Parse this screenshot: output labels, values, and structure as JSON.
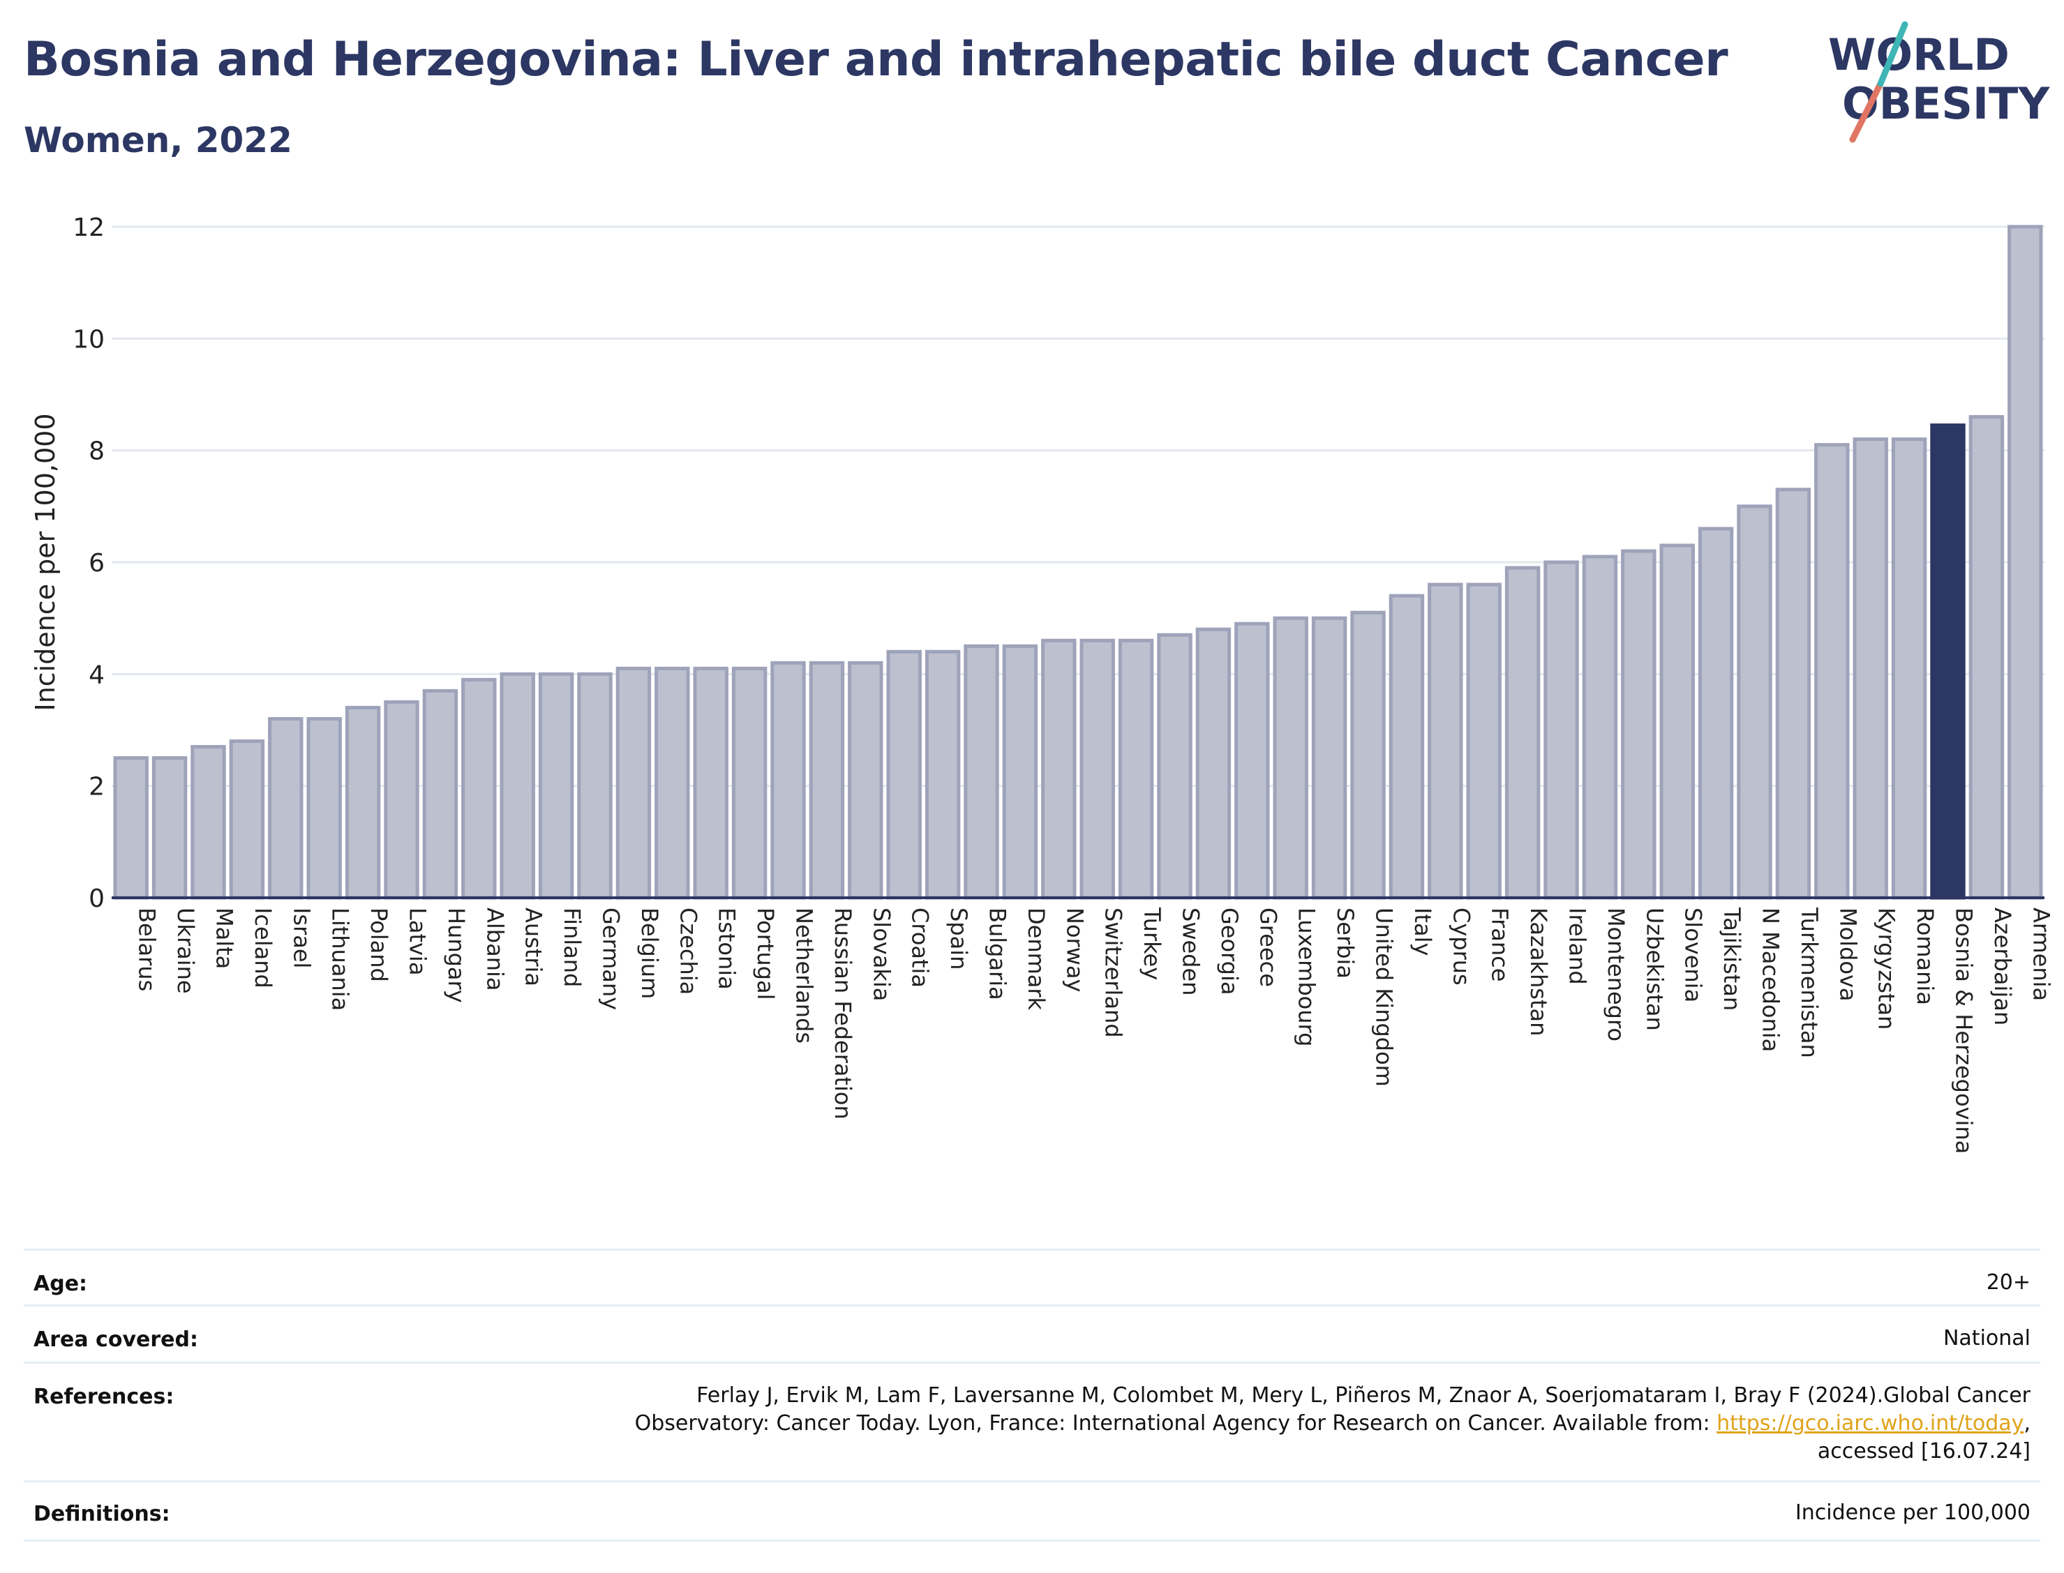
{
  "header": {
    "title": "Bosnia and Herzegovina: Liver and intrahepatic bile duct Cancer",
    "subtitle": "Women, 2022"
  },
  "logo": {
    "line1": "WORLD",
    "line2": "OBESITY"
  },
  "colors": {
    "bar": "#bcc0cf",
    "bar_border": "#9ea3ba",
    "highlight": "#2c3763",
    "grid": "#e3e8ef",
    "title": "#2c3763"
  },
  "chart_data": {
    "type": "bar",
    "title": "Bosnia and Herzegovina: Liver and intrahepatic bile duct Cancer",
    "subtitle": "Women, 2022",
    "ylabel": "Incidence per 100,000",
    "xlabel": "",
    "ylim": [
      0,
      12
    ],
    "yticks": [
      0,
      2,
      4,
      6,
      8,
      10,
      12
    ],
    "grid": true,
    "highlight": "Bosnia & Herzegovina",
    "categories": [
      "Belarus",
      "Ukraine",
      "Malta",
      "Iceland",
      "Israel",
      "Lithuania",
      "Poland",
      "Latvia",
      "Hungary",
      "Albania",
      "Austria",
      "Finland",
      "Germany",
      "Belgium",
      "Czechia",
      "Estonia",
      "Portugal",
      "Netherlands",
      "Russian Federation",
      "Slovakia",
      "Croatia",
      "Spain",
      "Bulgaria",
      "Denmark",
      "Norway",
      "Switzerland",
      "Turkey",
      "Sweden",
      "Georgia",
      "Greece",
      "Luxembourg",
      "Serbia",
      "United Kingdom",
      "Italy",
      "Cyprus",
      "France",
      "Kazakhstan",
      "Ireland",
      "Montenegro",
      "Uzbekistan",
      "Slovenia",
      "Tajikistan",
      "N Macedonia",
      "Turkmenistan",
      "Moldova",
      "Kyrgyzstan",
      "Romania",
      "Bosnia & Herzegovina",
      "Azerbaijan",
      "Armenia"
    ],
    "values": [
      2.5,
      2.5,
      2.7,
      2.8,
      3.2,
      3.2,
      3.4,
      3.5,
      3.7,
      3.9,
      4.0,
      4.0,
      4.0,
      4.1,
      4.1,
      4.1,
      4.1,
      4.2,
      4.2,
      4.2,
      4.4,
      4.4,
      4.5,
      4.5,
      4.6,
      4.6,
      4.6,
      4.7,
      4.8,
      4.9,
      5.0,
      5.0,
      5.1,
      5.4,
      5.6,
      5.6,
      5.9,
      6.0,
      6.1,
      6.2,
      6.3,
      6.6,
      7.0,
      7.3,
      8.1,
      8.2,
      8.2,
      8.45,
      8.6,
      12.0
    ]
  },
  "info": {
    "age_label": "Age:",
    "age_value": "20+",
    "area_label": "Area covered:",
    "area_value": "National",
    "references_label": "References:",
    "references_line1": "Ferlay J, Ervik M, Lam F, Laversanne M, Colombet M, Mery L, Piñeros M, Znaor A, Soerjomataram I, Bray F (2024).Global Cancer",
    "references_line2": "Observatory: Cancer Today. Lyon, France: International Agency for Research on Cancer. Available from: ",
    "references_link": "https://gco.iarc.who.int/today",
    "references_line2_end": ",",
    "references_line3": "accessed [16.07.24]",
    "definitions_label": "Definitions:",
    "definitions_value": "Incidence per 100,000"
  }
}
